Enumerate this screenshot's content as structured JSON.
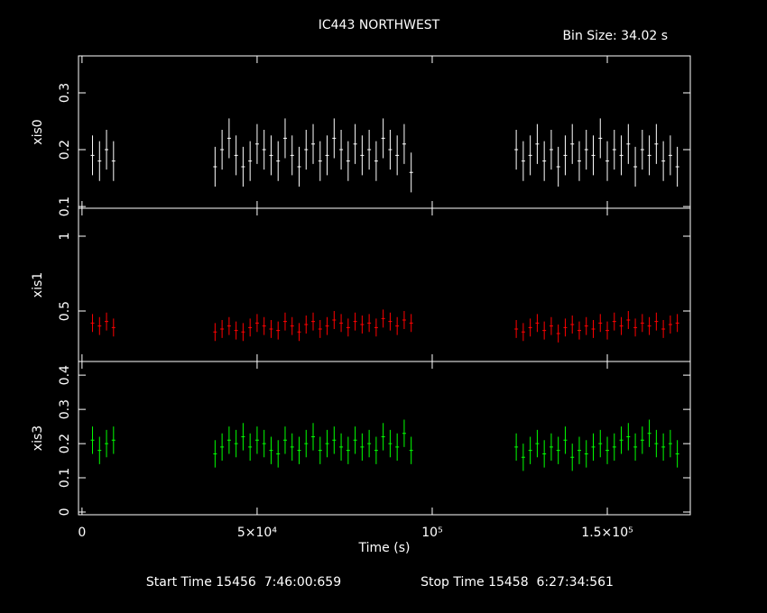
{
  "chart_data": [
    {
      "type": "errorbar",
      "title": "IC443 NORTHWEST",
      "subtitle": "Bin Size: 34.02 s",
      "ylabel": "xis0",
      "color": "#ffffff",
      "x": [
        3000,
        5000,
        7000,
        9000,
        38000,
        40000,
        42000,
        44000,
        46000,
        48000,
        50000,
        52000,
        54000,
        56000,
        58000,
        60000,
        62000,
        64000,
        66000,
        68000,
        70000,
        72000,
        74000,
        76000,
        78000,
        80000,
        82000,
        84000,
        86000,
        88000,
        90000,
        92000,
        94000,
        124000,
        126000,
        128000,
        130000,
        132000,
        134000,
        136000,
        138000,
        140000,
        142000,
        144000,
        146000,
        148000,
        150000,
        152000,
        154000,
        156000,
        158000,
        160000,
        162000,
        164000,
        166000,
        168000,
        170000
      ],
      "values": [
        0.19,
        0.18,
        0.2,
        0.18,
        0.17,
        0.2,
        0.22,
        0.19,
        0.17,
        0.18,
        0.21,
        0.2,
        0.19,
        0.18,
        0.22,
        0.19,
        0.17,
        0.2,
        0.21,
        0.18,
        0.19,
        0.22,
        0.2,
        0.18,
        0.21,
        0.19,
        0.2,
        0.18,
        0.22,
        0.2,
        0.19,
        0.21,
        0.16,
        0.2,
        0.18,
        0.19,
        0.21,
        0.18,
        0.2,
        0.17,
        0.19,
        0.21,
        0.18,
        0.2,
        0.19,
        0.22,
        0.18,
        0.2,
        0.19,
        0.21,
        0.17,
        0.2,
        0.19,
        0.21,
        0.18,
        0.19,
        0.17
      ],
      "yerr": 0.035,
      "xlim": [
        -1000,
        173700
      ],
      "ylim": [
        0.097,
        0.365
      ],
      "yticks": [
        0.1,
        0.2,
        0.3
      ]
    },
    {
      "type": "errorbar",
      "ylabel": "xis1",
      "color": "#ff0000",
      "x": [
        3000,
        5000,
        7000,
        9000,
        38000,
        40000,
        42000,
        44000,
        46000,
        48000,
        50000,
        52000,
        54000,
        56000,
        58000,
        60000,
        62000,
        64000,
        66000,
        68000,
        70000,
        72000,
        74000,
        76000,
        78000,
        80000,
        82000,
        84000,
        86000,
        88000,
        90000,
        92000,
        94000,
        124000,
        126000,
        128000,
        130000,
        132000,
        134000,
        136000,
        138000,
        140000,
        142000,
        144000,
        146000,
        148000,
        150000,
        152000,
        154000,
        156000,
        158000,
        160000,
        162000,
        164000,
        166000,
        168000,
        170000
      ],
      "values": [
        0.42,
        0.4,
        0.43,
        0.39,
        0.36,
        0.38,
        0.4,
        0.37,
        0.36,
        0.39,
        0.42,
        0.4,
        0.38,
        0.37,
        0.43,
        0.4,
        0.36,
        0.41,
        0.43,
        0.38,
        0.4,
        0.44,
        0.42,
        0.39,
        0.43,
        0.41,
        0.42,
        0.39,
        0.45,
        0.43,
        0.4,
        0.44,
        0.42,
        0.38,
        0.36,
        0.39,
        0.42,
        0.37,
        0.4,
        0.35,
        0.39,
        0.41,
        0.37,
        0.4,
        0.38,
        0.42,
        0.37,
        0.43,
        0.4,
        0.44,
        0.39,
        0.42,
        0.4,
        0.43,
        0.38,
        0.41,
        0.42
      ],
      "yerr": 0.06,
      "xlim": [
        -1000,
        173700
      ],
      "ylim": [
        0.163,
        1.187
      ],
      "yticks": [
        0.5,
        1
      ]
    },
    {
      "type": "errorbar",
      "ylabel": "xis3",
      "xlabel": "Time (s)",
      "color": "#00ff00",
      "x": [
        3000,
        5000,
        7000,
        9000,
        38000,
        40000,
        42000,
        44000,
        46000,
        48000,
        50000,
        52000,
        54000,
        56000,
        58000,
        60000,
        62000,
        64000,
        66000,
        68000,
        70000,
        72000,
        74000,
        76000,
        78000,
        80000,
        82000,
        84000,
        86000,
        88000,
        90000,
        92000,
        94000,
        124000,
        126000,
        128000,
        130000,
        132000,
        134000,
        136000,
        138000,
        140000,
        142000,
        144000,
        146000,
        148000,
        150000,
        152000,
        154000,
        156000,
        158000,
        160000,
        162000,
        164000,
        166000,
        168000,
        170000
      ],
      "values": [
        0.21,
        0.18,
        0.2,
        0.21,
        0.17,
        0.19,
        0.21,
        0.2,
        0.22,
        0.19,
        0.21,
        0.2,
        0.18,
        0.17,
        0.21,
        0.19,
        0.18,
        0.2,
        0.22,
        0.18,
        0.2,
        0.21,
        0.19,
        0.18,
        0.21,
        0.19,
        0.2,
        0.18,
        0.22,
        0.2,
        0.19,
        0.23,
        0.18,
        0.19,
        0.16,
        0.18,
        0.2,
        0.17,
        0.19,
        0.18,
        0.21,
        0.16,
        0.18,
        0.17,
        0.19,
        0.2,
        0.18,
        0.19,
        0.21,
        0.22,
        0.19,
        0.21,
        0.23,
        0.2,
        0.19,
        0.2,
        0.17
      ],
      "yerr": 0.04,
      "xlim": [
        -1000,
        173700
      ],
      "ylim": [
        -0.008,
        0.44
      ],
      "yticks": [
        0,
        0.1,
        0.2,
        0.3,
        0.4
      ],
      "xticks": [
        0,
        {
          "value": 50000,
          "label": "5×10⁴"
        },
        {
          "value": 100000,
          "label": "10⁵"
        },
        {
          "value": 150000,
          "label": "1.5×10⁵"
        }
      ]
    }
  ],
  "footer": {
    "start": "Start Time 15456  7:46:00:659",
    "stop": "Stop Time 15458  6:27:34:561"
  }
}
